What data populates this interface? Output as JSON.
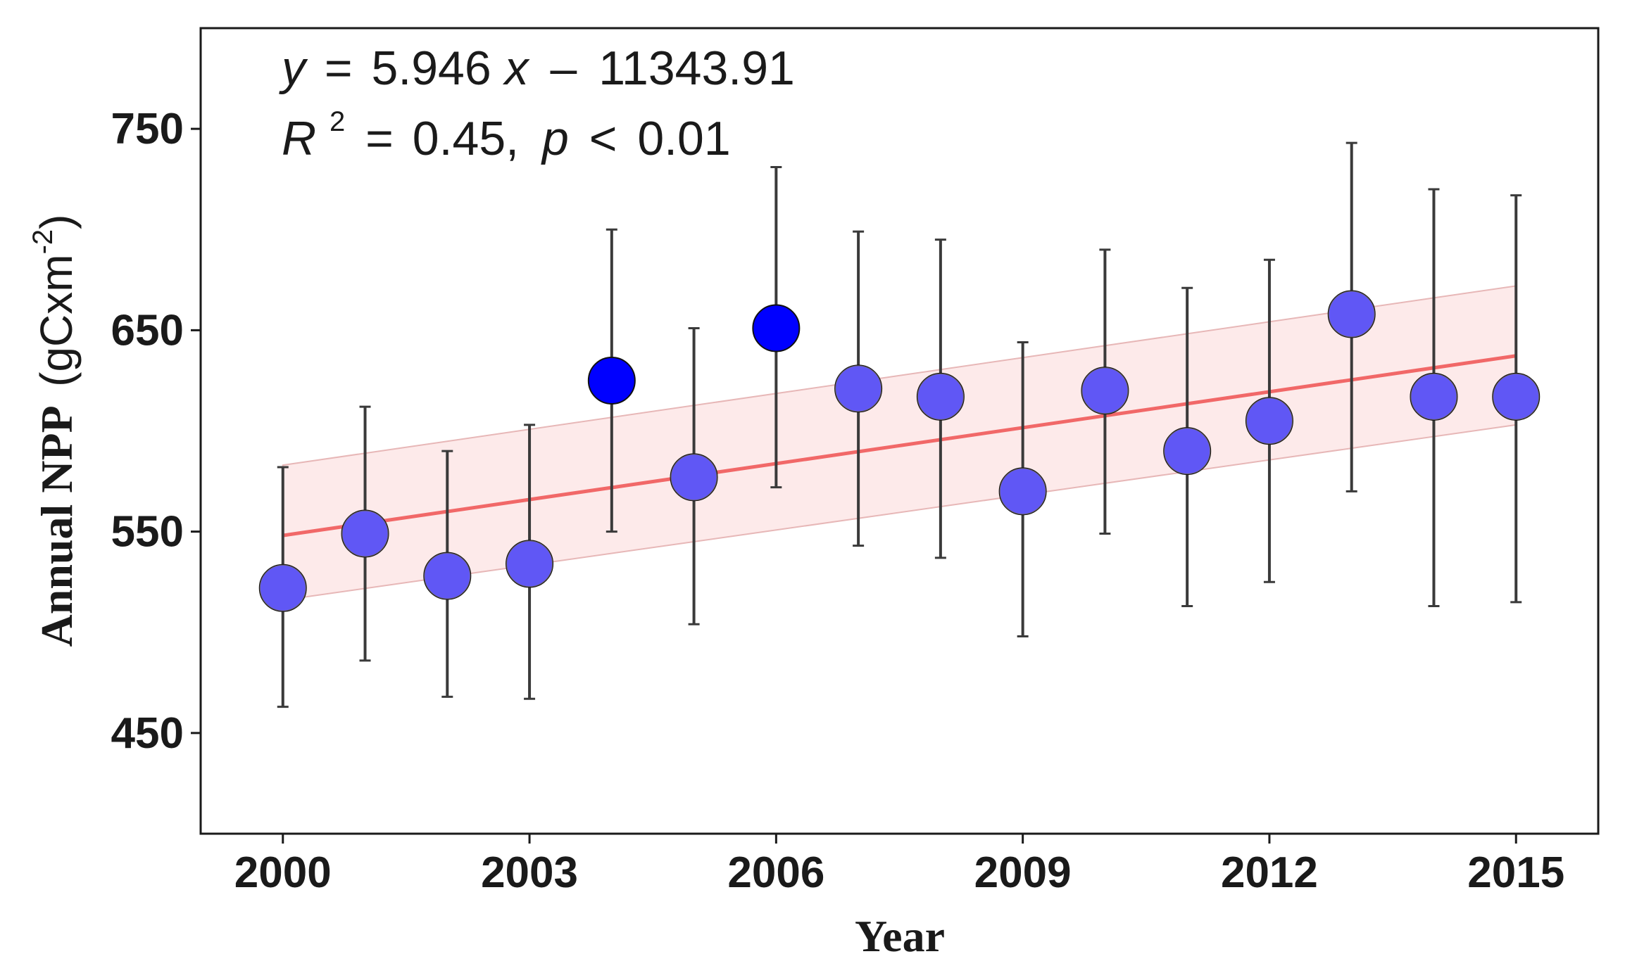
{
  "chart_data": {
    "type": "scatter",
    "title": "",
    "xlabel": "Year",
    "ylabel": {
      "main": "Annual NPP",
      "unit_prefix": "(gCxm",
      "unit_exp": "-2",
      "unit_suffix": ")"
    },
    "xlim": [
      1999.0,
      2016.0
    ],
    "ylim": [
      400,
      800
    ],
    "xticks": [
      2000,
      2003,
      2006,
      2009,
      2012,
      2015
    ],
    "yticks": [
      450,
      550,
      650,
      750
    ],
    "series": [
      {
        "name": "Annual NPP",
        "x": [
          2000,
          2001,
          2002,
          2003,
          2004,
          2005,
          2006,
          2007,
          2008,
          2009,
          2010,
          2011,
          2012,
          2013,
          2014,
          2015
        ],
        "y": [
          522,
          549,
          528,
          534,
          625,
          577,
          651,
          621,
          617,
          570,
          620,
          590,
          605,
          658,
          617,
          617
        ],
        "err_low": [
          463,
          486,
          468,
          467,
          550,
          504,
          572,
          543,
          537,
          498,
          549,
          513,
          525,
          570,
          513,
          515
        ],
        "err_high": [
          582,
          612,
          590,
          603,
          700,
          651,
          731,
          699,
          695,
          644,
          690,
          671,
          685,
          743,
          720,
          717
        ]
      }
    ],
    "regression": {
      "slope": 5.946,
      "intercept": -11343.91,
      "x_range": [
        2000,
        2015
      ],
      "ci_lower": [
        516,
        603
      ],
      "ci_upper": [
        583,
        672
      ],
      "color": "#f16868",
      "band_color": "#fde6e6"
    },
    "annotation": {
      "line1": {
        "y": "y",
        "eq": "=",
        "a": "5.946",
        "x": "x",
        "minus": "–",
        "b": "11343.91"
      },
      "line2": {
        "R": "R",
        "sq": "2",
        "eq": "=",
        "r2": "0.45,",
        "p": "p",
        "lt": "<",
        "pval": "0.01"
      }
    },
    "colors": {
      "point_fill": "#0000ff",
      "point_stroke": "#111111",
      "errorbar": "#3a3a3a",
      "axis": "#1a1a1a"
    }
  }
}
